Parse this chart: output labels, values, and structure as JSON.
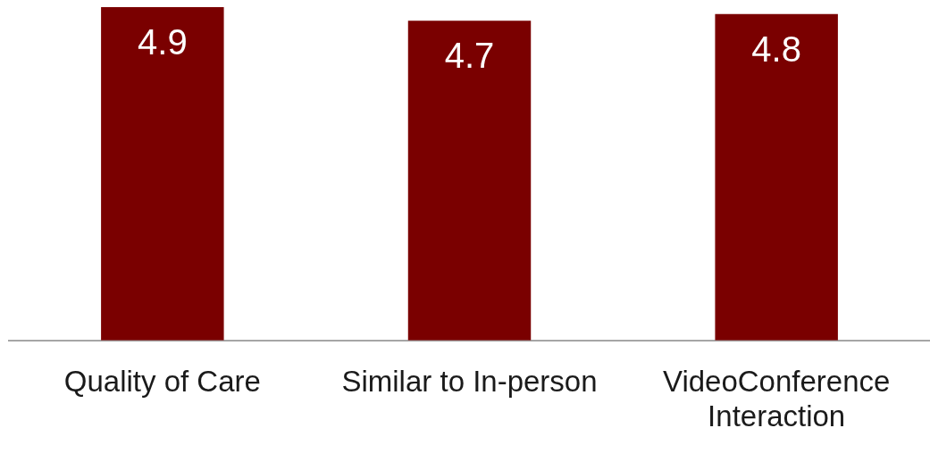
{
  "chart_data": {
    "type": "bar",
    "categories": [
      "Quality of Care",
      "Similar to In-person",
      "VideoConference Interaction"
    ],
    "values": [
      4.9,
      4.7,
      4.8
    ],
    "color": "#7a0000",
    "ylim": [
      0,
      4.9
    ],
    "tick_labels": "x",
    "grid": false,
    "data_labels": true
  }
}
